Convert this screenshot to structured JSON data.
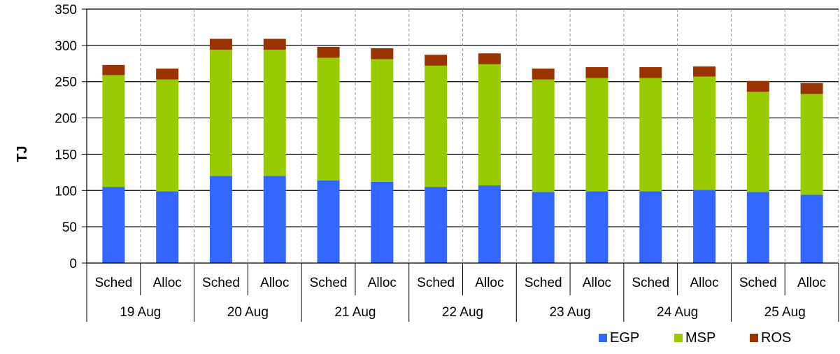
{
  "chart_data": {
    "type": "bar",
    "stacked": true,
    "ylabel": "TJ",
    "ylim": [
      0,
      350
    ],
    "yticks": [
      0,
      50,
      100,
      150,
      200,
      250,
      300,
      350
    ],
    "grid": true,
    "legend_position": "bottom-right",
    "groups": [
      "19 Aug",
      "20 Aug",
      "21 Aug",
      "22 Aug",
      "23 Aug",
      "24 Aug",
      "25 Aug"
    ],
    "subcategories": [
      "Sched",
      "Alloc"
    ],
    "series": [
      {
        "name": "EGP",
        "color": "#3366ff",
        "values": [
          105,
          99,
          120,
          120,
          114,
          112,
          105,
          107,
          98,
          99,
          99,
          101,
          98,
          94
        ]
      },
      {
        "name": "MSP",
        "color": "#99cc00",
        "values": [
          154,
          154,
          174,
          174,
          169,
          169,
          167,
          167,
          155,
          156,
          156,
          156,
          138,
          139
        ]
      },
      {
        "name": "ROS",
        "color": "#993300",
        "values": [
          14,
          15,
          15,
          15,
          15,
          15,
          15,
          15,
          15,
          15,
          15,
          14,
          15,
          15
        ]
      }
    ]
  }
}
